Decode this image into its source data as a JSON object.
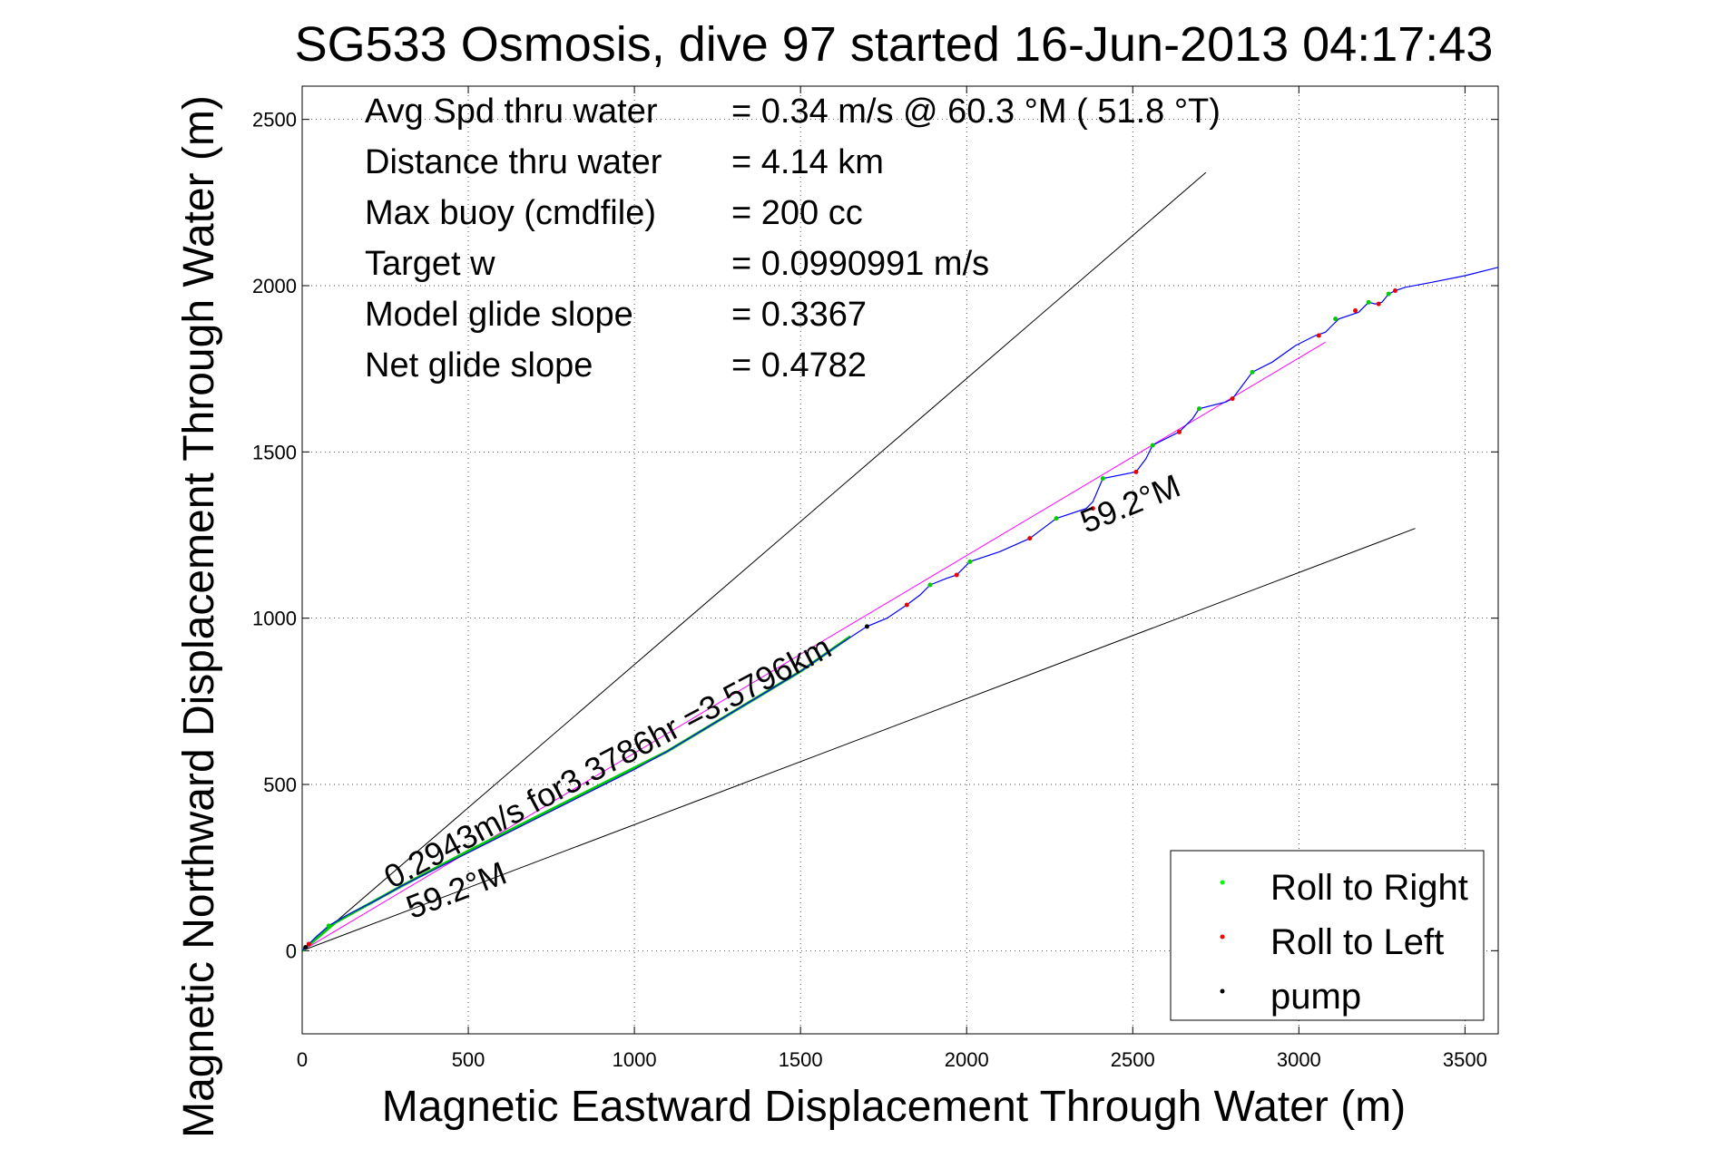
{
  "chart_data": {
    "type": "line",
    "title": "SG533 Osmosis, dive 97 started 16-Jun-2013 04:17:43",
    "xlabel": "Magnetic Eastward Displacement Through Water (m)",
    "ylabel": "Magnetic Northward Displacement Through Water (m)",
    "xlim": [
      0,
      3600
    ],
    "ylim": [
      -250,
      2600
    ],
    "xticks": [
      0,
      500,
      1000,
      1500,
      2000,
      2500,
      3000,
      3500
    ],
    "yticks": [
      0,
      500,
      1000,
      1500,
      2000,
      2500
    ],
    "grid": true,
    "legend_position": "bottom-right",
    "stats": [
      {
        "label": "Avg Spd thru water",
        "value": "=  0.34 m/s @  60.3 °M ( 51.8 °T)"
      },
      {
        "label": "Distance thru water",
        "value": "=  4.14 km"
      },
      {
        "label": "Max buoy (cmdfile)",
        "value": "= 200 cc"
      },
      {
        "label": "Target w",
        "value": "= 0.0990991 m/s"
      },
      {
        "label": "Model glide slope",
        "value": "= 0.3367"
      },
      {
        "label": "Net glide slope",
        "value": "= 0.4782"
      }
    ],
    "annotations": [
      {
        "text": "0.2943m/s for3.3786hr =3.5796km",
        "x": 270,
        "y": 185,
        "angle_data": 28
      },
      {
        "text": "59.2°M",
        "x": 330,
        "y": 95,
        "angle_data": 21
      },
      {
        "text": "59.2°M",
        "x": 2360,
        "y": 1255,
        "angle_data": 22
      }
    ],
    "series": [
      {
        "name": "track",
        "color": "#0000ff",
        "x": [
          0,
          20,
          40,
          80,
          140,
          220,
          300,
          400,
          500,
          600,
          700,
          800,
          900,
          1000,
          1100,
          1200,
          1300,
          1400,
          1500,
          1600,
          1700,
          1760,
          1820,
          1860,
          1890,
          1940,
          1970,
          2010,
          2100,
          2190,
          2230,
          2270,
          2360,
          2380,
          2410,
          2510,
          2540,
          2560,
          2640,
          2680,
          2700,
          2780,
          2800,
          2830,
          2860,
          2920,
          2990,
          3050,
          3080,
          3100,
          3120,
          3180,
          3210,
          3230,
          3250,
          3270,
          3290,
          3320,
          3400,
          3500,
          3600
        ],
        "y": [
          0,
          20,
          40,
          75,
          110,
          150,
          195,
          245,
          295,
          345,
          395,
          445,
          495,
          545,
          600,
          660,
          720,
          780,
          840,
          910,
          975,
          1000,
          1040,
          1070,
          1100,
          1120,
          1130,
          1170,
          1200,
          1240,
          1270,
          1300,
          1330,
          1350,
          1420,
          1440,
          1480,
          1520,
          1560,
          1600,
          1630,
          1650,
          1660,
          1700,
          1740,
          1770,
          1820,
          1850,
          1860,
          1880,
          1900,
          1920,
          1950,
          1945,
          1950,
          1975,
          1985,
          1995,
          2010,
          2030,
          2055
        ]
      }
    ],
    "reference_lines": [
      {
        "name": "bound-upper",
        "color": "#000000",
        "x": [
          0,
          2720
        ],
        "y": [
          0,
          2340
        ]
      },
      {
        "name": "bound-lower",
        "color": "#000000",
        "x": [
          0,
          3350
        ],
        "y": [
          0,
          1270
        ]
      },
      {
        "name": "net-course",
        "color": "#ff00ff",
        "x": [
          0,
          3080
        ],
        "y": [
          0,
          1830
        ]
      }
    ],
    "green_segment": {
      "color": "#00cc00",
      "x": [
        0,
        100,
        300,
        500,
        700,
        900,
        1100,
        1300,
        1500,
        1650
      ],
      "y": [
        0,
        85,
        195,
        300,
        400,
        500,
        600,
        720,
        840,
        945
      ]
    },
    "legend": [
      {
        "label": "Roll to Right",
        "color": "#00ff00"
      },
      {
        "label": "Roll to Left",
        "color": "#ff0000"
      },
      {
        "label": "pump",
        "color": "#000000"
      }
    ],
    "markers": {
      "roll_right": {
        "x": [
          80,
          1890,
          2010,
          2270,
          2410,
          2560,
          2700,
          2860,
          3110,
          3210,
          3270
        ],
        "y": [
          75,
          1100,
          1170,
          1300,
          1420,
          1520,
          1630,
          1740,
          1900,
          1950,
          1975
        ]
      },
      "roll_left": {
        "x": [
          20,
          1820,
          1970,
          2190,
          2380,
          2510,
          2640,
          2800,
          3060,
          3170,
          3240,
          3290
        ],
        "y": [
          20,
          1040,
          1130,
          1240,
          1330,
          1440,
          1560,
          1660,
          1850,
          1925,
          1945,
          1985
        ]
      },
      "pump": {
        "x": [
          10,
          1700
        ],
        "y": [
          10,
          975
        ]
      }
    }
  }
}
